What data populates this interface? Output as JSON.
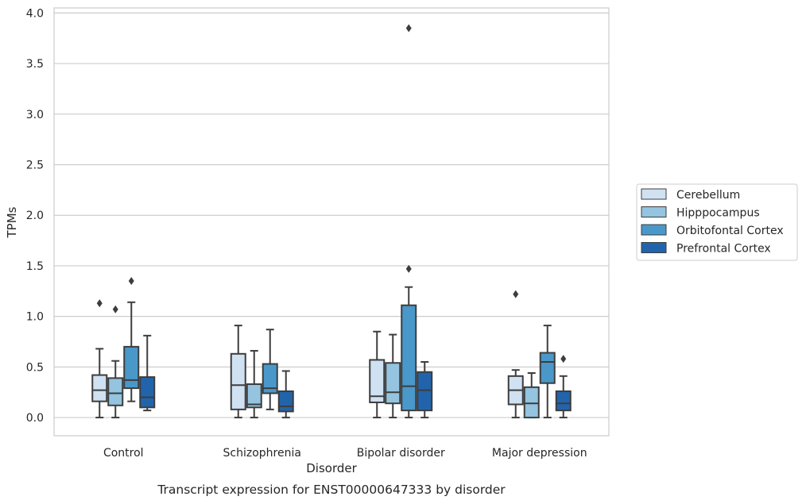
{
  "chart_data": {
    "type": "box",
    "caption": "Transcript expression for ENST00000647333 by disorder",
    "xlabel": "Disorder",
    "ylabel": "TPMs",
    "ylim": [
      -0.18,
      4.05
    ],
    "yticks": [
      0.0,
      0.5,
      1.0,
      1.5,
      2.0,
      2.5,
      3.0,
      3.5,
      4.0
    ],
    "ytick_labels": [
      "0.0",
      "0.5",
      "1.0",
      "1.5",
      "2.0",
      "2.5",
      "3.0",
      "3.5",
      "4.0"
    ],
    "grid": "horizontal",
    "legend_position": "right-center",
    "categories": [
      "Control",
      "Schizophrenia",
      "Bipolar disorder",
      "Major depression"
    ],
    "series": [
      {
        "name": "Cerebellum",
        "color": "#d0e1f2",
        "boxes": [
          {
            "whislo": 0.0,
            "q1": 0.16,
            "med": 0.27,
            "q3": 0.42,
            "whishi": 0.68,
            "fliers": [
              1.13
            ]
          },
          {
            "whislo": 0.0,
            "q1": 0.08,
            "med": 0.32,
            "q3": 0.63,
            "whishi": 0.91,
            "fliers": []
          },
          {
            "whislo": 0.0,
            "q1": 0.15,
            "med": 0.21,
            "q3": 0.57,
            "whishi": 0.85,
            "fliers": []
          },
          {
            "whislo": 0.0,
            "q1": 0.13,
            "med": 0.27,
            "q3": 0.41,
            "whishi": 0.47,
            "fliers": [
              1.22
            ]
          }
        ]
      },
      {
        "name": "Hipppocampus",
        "color": "#94c4df",
        "boxes": [
          {
            "whislo": 0.0,
            "q1": 0.12,
            "med": 0.24,
            "q3": 0.39,
            "whishi": 0.56,
            "fliers": [
              1.07
            ]
          },
          {
            "whislo": 0.0,
            "q1": 0.1,
            "med": 0.13,
            "q3": 0.33,
            "whishi": 0.66,
            "fliers": []
          },
          {
            "whislo": 0.0,
            "q1": 0.14,
            "med": 0.25,
            "q3": 0.54,
            "whishi": 0.82,
            "fliers": []
          },
          {
            "whislo": 0.0,
            "q1": 0.0,
            "med": 0.14,
            "q3": 0.3,
            "whishi": 0.44,
            "fliers": []
          }
        ]
      },
      {
        "name": "Orbitofontal Cortex",
        "color": "#4a98c9",
        "boxes": [
          {
            "whislo": 0.16,
            "q1": 0.29,
            "med": 0.37,
            "q3": 0.7,
            "whishi": 1.14,
            "fliers": [
              1.35
            ]
          },
          {
            "whislo": 0.08,
            "q1": 0.24,
            "med": 0.29,
            "q3": 0.53,
            "whishi": 0.87,
            "fliers": []
          },
          {
            "whislo": 0.0,
            "q1": 0.07,
            "med": 0.31,
            "q3": 1.11,
            "whishi": 1.29,
            "fliers": [
              1.47,
              3.85
            ]
          },
          {
            "whislo": 0.0,
            "q1": 0.34,
            "med": 0.55,
            "q3": 0.64,
            "whishi": 0.91,
            "fliers": []
          }
        ]
      },
      {
        "name": "Prefrontal Cortex",
        "color": "#2264ab",
        "boxes": [
          {
            "whislo": 0.07,
            "q1": 0.1,
            "med": 0.2,
            "q3": 0.4,
            "whishi": 0.81,
            "fliers": []
          },
          {
            "whislo": 0.0,
            "q1": 0.06,
            "med": 0.11,
            "q3": 0.26,
            "whishi": 0.46,
            "fliers": []
          },
          {
            "whislo": 0.0,
            "q1": 0.07,
            "med": 0.27,
            "q3": 0.45,
            "whishi": 0.55,
            "fliers": []
          },
          {
            "whislo": 0.0,
            "q1": 0.07,
            "med": 0.14,
            "q3": 0.26,
            "whishi": 0.41,
            "fliers": [
              0.58
            ]
          }
        ]
      }
    ]
  }
}
